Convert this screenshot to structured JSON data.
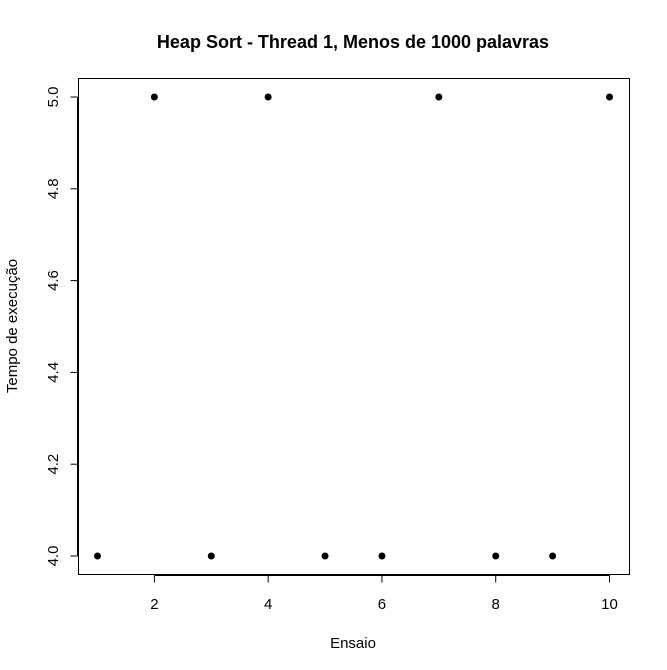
{
  "chart_data": {
    "type": "scatter",
    "title": "Heap Sort - Thread 1, Menos de 1000 palavras",
    "xlabel": "Ensaio",
    "ylabel": "Tempo de execução",
    "xlim": [
      1,
      10
    ],
    "ylim": [
      4.0,
      5.0
    ],
    "xticks": [
      2,
      4,
      6,
      8,
      10
    ],
    "yticks": [
      4.0,
      4.2,
      4.4,
      4.6,
      4.8,
      5.0
    ],
    "ytick_labels": [
      "4.0",
      "4.2",
      "4.4",
      "4.6",
      "4.8",
      "5.0"
    ],
    "x": [
      1,
      2,
      3,
      4,
      5,
      6,
      7,
      8,
      9,
      10
    ],
    "y": [
      4,
      5,
      4,
      5,
      4,
      4,
      5,
      4,
      4,
      5
    ],
    "grid": false,
    "legend": "none",
    "point_color": "#000000"
  }
}
